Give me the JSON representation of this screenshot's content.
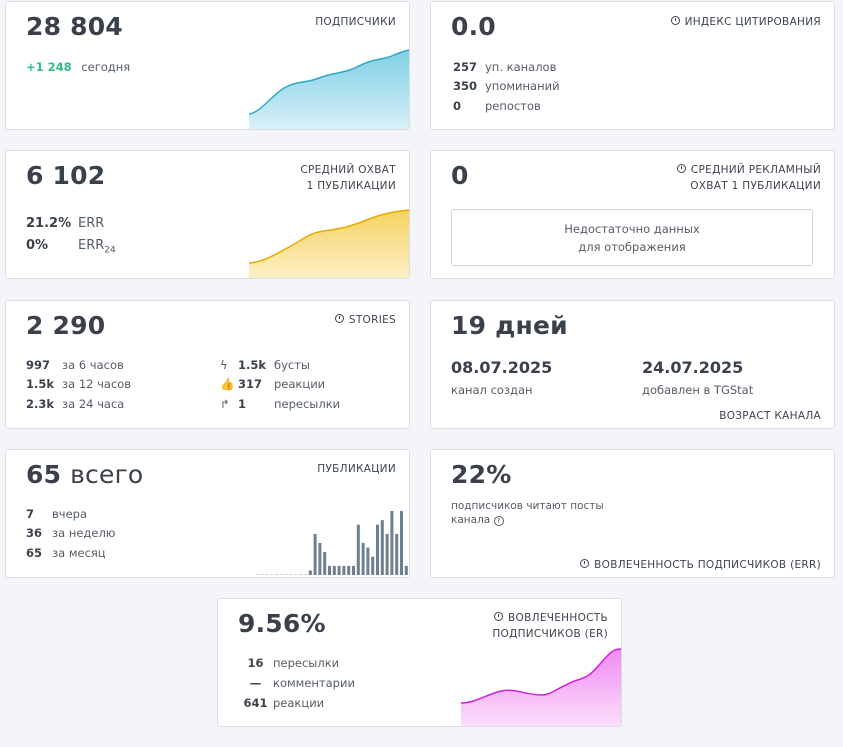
{
  "subscribers": {
    "value": "28 804",
    "label": "ПОДПИСЧИКИ",
    "delta": "+1 248",
    "delta_label": "сегодня"
  },
  "citation": {
    "value": "0.0",
    "label": "ИНДЕКС ЦИТИРОВАНИЯ",
    "rows": [
      {
        "num": "257",
        "text": "уп. каналов"
      },
      {
        "num": "350",
        "text": "упоминаний"
      },
      {
        "num": "0",
        "text": "репостов"
      }
    ]
  },
  "reach": {
    "value": "6 102",
    "label_line1": "СРЕДНИЙ ОХВАТ",
    "label_line2": "1 ПУБЛИКАЦИИ",
    "err_value": "21.2%",
    "err_label": "ERR",
    "err24_value": "0%",
    "err24_label": "ERR",
    "err24_sub": "24"
  },
  "ad_reach": {
    "value": "0",
    "label_line1": "СРЕДНИЙ РЕКЛАМНЫЙ",
    "label_line2": "ОХВАТ 1 ПУБЛИКАЦИИ",
    "nodata_line1": "Недостаточно данных",
    "nodata_line2": "для отображения"
  },
  "stories": {
    "value": "2 290",
    "label": "STORIES",
    "left": [
      {
        "num": "997",
        "text": "за 6 часов"
      },
      {
        "num": "1.5k",
        "text": "за 12 часов"
      },
      {
        "num": "2.3k",
        "text": "за 24 часа"
      }
    ],
    "right": [
      {
        "icon": "boost-icon",
        "num": "1.5k",
        "text": "бусты"
      },
      {
        "icon": "thumbs-up-icon",
        "num": "317",
        "text": "реакции"
      },
      {
        "icon": "forward-icon",
        "num": "1",
        "text": "пересылки"
      }
    ]
  },
  "age": {
    "value": "19 дней",
    "created_date": "08.07.2025",
    "created_label": "канал создан",
    "added_date": "24.07.2025",
    "added_label": "добавлен в TGStat",
    "label": "ВОЗРАСТ КАНАЛА"
  },
  "posts": {
    "value": "65",
    "value_suffix": "всего",
    "label": "ПУБЛИКАЦИИ",
    "rows": [
      {
        "num": "7",
        "text": "вчера"
      },
      {
        "num": "36",
        "text": "за неделю"
      },
      {
        "num": "65",
        "text": "за месяц"
      }
    ],
    "bars": [
      0,
      0,
      0,
      0,
      0,
      0,
      0,
      0,
      0,
      0,
      0,
      1,
      9,
      7,
      5,
      2,
      2,
      2,
      2,
      2,
      2,
      11,
      7,
      6,
      4,
      11,
      12,
      9,
      14,
      9,
      14,
      2
    ]
  },
  "err": {
    "value": "22%",
    "desc_line1": "подписчиков читают посты",
    "desc_line2": "канала",
    "label": "ВОВЛЕЧЕННОСТЬ ПОДПИСЧИКОВ (ERR)"
  },
  "er": {
    "value": "9.56%",
    "label_line1": "ВОВЛЕЧЕННОСТЬ",
    "label_line2": "ПОДПИСЧИКОВ (ER)",
    "rows": [
      {
        "num": "16",
        "text": "пересылки"
      },
      {
        "num": "—",
        "text": "комментарии"
      },
      {
        "num": "641",
        "text": "реакции"
      }
    ]
  },
  "colors": {
    "blue": "#5cc2dc",
    "yellow": "#f2c12e",
    "magenta": "#e040e6",
    "green": "#2ebd85",
    "bars": "#6e7f90"
  }
}
